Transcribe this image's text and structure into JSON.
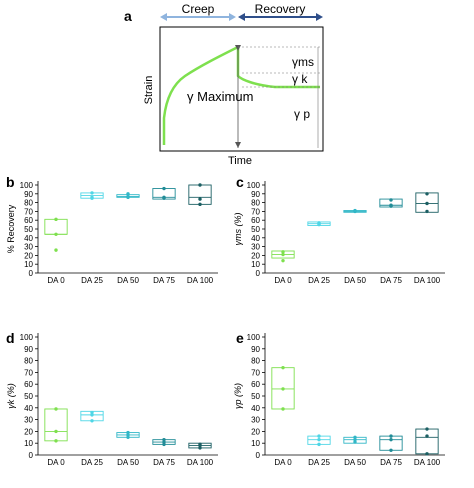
{
  "panels": {
    "a": "a",
    "b": "b",
    "c": "c",
    "d": "d",
    "e": "e"
  },
  "creep_diagram": {
    "creep_label": "Creep",
    "recovery_label": "Recovery",
    "xlabel": "Time",
    "ylabel": "Strain",
    "gamma_maximum": "γ Maximum",
    "gamma_ms": "γms",
    "gamma_k": "γ k",
    "gamma_p": "γ p",
    "colors": {
      "curve": "#7ee04e",
      "creep_arrow": "#8fb4de",
      "recovery_arrow": "#2f4f8a",
      "guide": "#555555"
    }
  },
  "chart_data": [
    {
      "type": "box",
      "panel": "b",
      "ylabel": "% Recovery",
      "categories": [
        "DA 0",
        "DA 25",
        "DA 50",
        "DA 75",
        "DA 100"
      ],
      "ylim": [
        0,
        100
      ],
      "yticks": [
        0,
        10,
        20,
        30,
        40,
        50,
        60,
        70,
        80,
        90,
        100
      ],
      "points": [
        [
          61,
          44,
          26
        ],
        [
          91,
          86,
          85
        ],
        [
          90,
          87,
          86
        ],
        [
          96,
          85,
          86
        ],
        [
          100,
          84,
          78
        ]
      ],
      "boxes": [
        [
          44,
          61,
          44
        ],
        [
          85,
          91,
          88
        ],
        [
          86,
          89,
          87
        ],
        [
          84,
          96,
          86
        ],
        [
          78,
          100,
          86
        ]
      ]
    },
    {
      "type": "box",
      "panel": "c",
      "ylabel": "γms (%)",
      "categories": [
        "DA 0",
        "DA 25",
        "DA 50",
        "DA 75",
        "DA 100"
      ],
      "ylim": [
        0,
        100
      ],
      "yticks": [
        0,
        10,
        20,
        30,
        40,
        50,
        60,
        70,
        80,
        90,
        100
      ],
      "points": [
        [
          24,
          21,
          14
        ],
        [
          57,
          56,
          55
        ],
        [
          71,
          70,
          70
        ],
        [
          83,
          77,
          76
        ],
        [
          90,
          79,
          70
        ]
      ],
      "boxes": [
        [
          17,
          25,
          21
        ],
        [
          54,
          58,
          56
        ],
        [
          69,
          71,
          70
        ],
        [
          75,
          84,
          77
        ],
        [
          69,
          91,
          79
        ]
      ]
    },
    {
      "type": "box",
      "panel": "d",
      "ylabel": "γk (%)",
      "categories": [
        "DA 0",
        "DA 25",
        "DA 50",
        "DA 75",
        "DA 100"
      ],
      "ylim": [
        0,
        100
      ],
      "yticks": [
        0,
        10,
        20,
        30,
        40,
        50,
        60,
        70,
        80,
        90,
        100
      ],
      "points": [
        [
          39,
          20,
          12
        ],
        [
          36,
          34,
          29
        ],
        [
          19,
          17,
          15
        ],
        [
          13,
          11,
          9
        ],
        [
          9,
          8,
          6
        ]
      ],
      "boxes": [
        [
          12,
          39,
          20
        ],
        [
          29,
          37,
          34
        ],
        [
          15,
          19,
          17
        ],
        [
          9,
          13,
          11
        ],
        [
          6,
          10,
          8
        ]
      ]
    },
    {
      "type": "box",
      "panel": "e",
      "ylabel": "γp (%)",
      "categories": [
        "DA 0",
        "DA 25",
        "DA 50",
        "DA 75",
        "DA 100"
      ],
      "ylim": [
        0,
        100
      ],
      "yticks": [
        0,
        10,
        20,
        30,
        40,
        50,
        60,
        70,
        80,
        90,
        100
      ],
      "points": [
        [
          74,
          56,
          39
        ],
        [
          16,
          13,
          9
        ],
        [
          15,
          13,
          11
        ],
        [
          16,
          13,
          4
        ],
        [
          22,
          16,
          1
        ]
      ],
      "boxes": [
        [
          39,
          74,
          56
        ],
        [
          9,
          16,
          13
        ],
        [
          10,
          15,
          13
        ],
        [
          4,
          16,
          13
        ],
        [
          1,
          22,
          15
        ]
      ]
    }
  ],
  "series_colors": [
    "#7ee04e",
    "#4fd6e6",
    "#31b7c7",
    "#218c97",
    "#1c5f63"
  ]
}
